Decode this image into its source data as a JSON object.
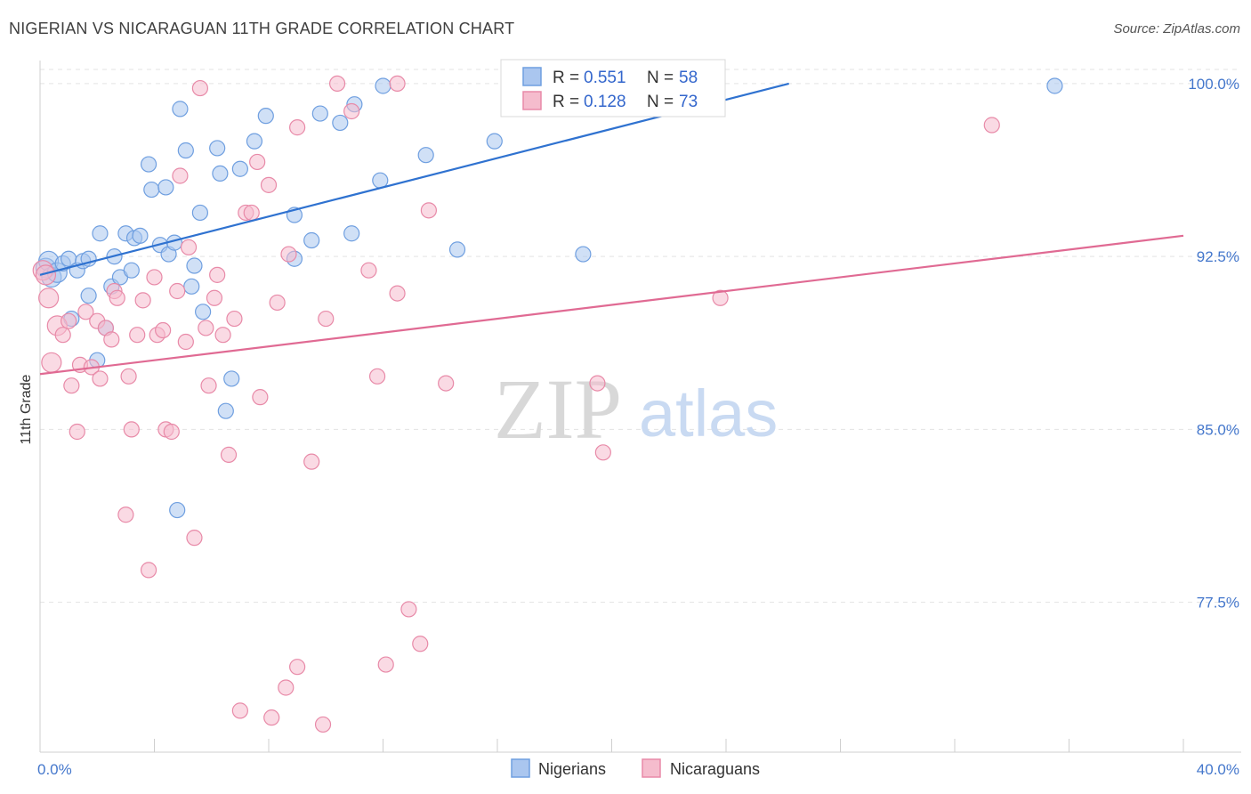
{
  "title": "NIGERIAN VS NICARAGUAN 11TH GRADE CORRELATION CHART",
  "source": "Source: ZipAtlas.com",
  "watermark": {
    "zip": "ZIP",
    "atlas": "atlas"
  },
  "chart_data": {
    "type": "scatter",
    "title": "NIGERIAN VS NICARAGUAN 11TH GRADE CORRELATION CHART",
    "xlabel": "",
    "ylabel": "11th Grade",
    "xlim": [
      0,
      40
    ],
    "ylim": [
      71,
      101
    ],
    "x_tick_labels": [
      {
        "value": 0,
        "label": "0.0%"
      },
      {
        "value": 40,
        "label": "40.0%"
      }
    ],
    "y_tick_labels": [
      {
        "value": 100,
        "label": "100.0%"
      },
      {
        "value": 92.5,
        "label": "92.5%"
      },
      {
        "value": 85,
        "label": "85.0%"
      },
      {
        "value": 77.5,
        "label": "77.5%"
      }
    ],
    "series": [
      {
        "name": "Nigerians",
        "color": "#6f9fe0",
        "fill": "#aac6ef",
        "line_color": "#2f72d0",
        "R": "0.551",
        "N": "58",
        "trend": {
          "x": [
            0,
            26.2
          ],
          "y": [
            91.7,
            100.0
          ]
        },
        "points": [
          [
            0.2,
            92.0
          ],
          [
            0.3,
            92.3
          ],
          [
            0.4,
            91.6
          ],
          [
            0.6,
            91.8
          ],
          [
            0.8,
            92.2
          ],
          [
            1.0,
            92.4
          ],
          [
            1.3,
            91.9
          ],
          [
            1.5,
            92.3
          ],
          [
            1.7,
            92.4
          ],
          [
            1.1,
            89.8
          ],
          [
            1.7,
            90.8
          ],
          [
            2.0,
            88.0
          ],
          [
            2.1,
            93.5
          ],
          [
            2.3,
            89.4
          ],
          [
            2.5,
            91.2
          ],
          [
            2.6,
            92.5
          ],
          [
            2.8,
            91.6
          ],
          [
            3.0,
            93.5
          ],
          [
            3.2,
            91.9
          ],
          [
            3.3,
            93.3
          ],
          [
            3.5,
            93.4
          ],
          [
            3.8,
            96.5
          ],
          [
            3.9,
            95.4
          ],
          [
            4.2,
            93.0
          ],
          [
            4.4,
            95.5
          ],
          [
            4.5,
            92.6
          ],
          [
            4.7,
            93.1
          ],
          [
            4.9,
            98.9
          ],
          [
            5.1,
            97.1
          ],
          [
            5.3,
            91.2
          ],
          [
            5.4,
            92.1
          ],
          [
            5.6,
            94.4
          ],
          [
            5.7,
            90.1
          ],
          [
            6.2,
            97.2
          ],
          [
            6.3,
            96.1
          ],
          [
            6.7,
            87.2
          ],
          [
            6.5,
            85.8
          ],
          [
            7.0,
            96.3
          ],
          [
            7.5,
            97.5
          ],
          [
            7.9,
            98.6
          ],
          [
            8.9,
            94.3
          ],
          [
            8.9,
            92.4
          ],
          [
            9.5,
            93.2
          ],
          [
            9.8,
            98.7
          ],
          [
            10.5,
            98.3
          ],
          [
            10.9,
            93.5
          ],
          [
            11.0,
            99.1
          ],
          [
            11.9,
            95.8
          ],
          [
            12.0,
            99.9
          ],
          [
            13.5,
            96.9
          ],
          [
            14.6,
            92.8
          ],
          [
            15.9,
            97.5
          ],
          [
            16.9,
            99.9
          ],
          [
            18.7,
            99.9
          ],
          [
            19.0,
            92.6
          ],
          [
            23.2,
            99.9
          ],
          [
            35.5,
            99.9
          ],
          [
            4.8,
            81.5
          ]
        ]
      },
      {
        "name": "Nicaraguans",
        "color": "#e88aa8",
        "fill": "#f5bccd",
        "line_color": "#e06a93",
        "R": "0.128",
        "N": "73",
        "trend": {
          "x": [
            0,
            40
          ],
          "y": [
            87.4,
            93.4
          ]
        },
        "points": [
          [
            0.1,
            91.9
          ],
          [
            0.3,
            90.7
          ],
          [
            0.4,
            87.9
          ],
          [
            0.6,
            89.5
          ],
          [
            0.8,
            89.1
          ],
          [
            1.0,
            89.7
          ],
          [
            1.1,
            86.9
          ],
          [
            1.3,
            84.9
          ],
          [
            1.4,
            87.8
          ],
          [
            1.6,
            90.1
          ],
          [
            1.8,
            87.7
          ],
          [
            2.0,
            89.7
          ],
          [
            2.1,
            87.2
          ],
          [
            2.3,
            89.4
          ],
          [
            2.5,
            88.9
          ],
          [
            2.6,
            91.0
          ],
          [
            2.7,
            90.7
          ],
          [
            3.0,
            81.3
          ],
          [
            3.1,
            87.3
          ],
          [
            3.2,
            85.0
          ],
          [
            3.4,
            89.1
          ],
          [
            3.6,
            90.6
          ],
          [
            3.8,
            78.9
          ],
          [
            4.0,
            91.6
          ],
          [
            4.1,
            89.1
          ],
          [
            4.3,
            89.3
          ],
          [
            4.4,
            85.0
          ],
          [
            4.6,
            84.9
          ],
          [
            4.8,
            91.0
          ],
          [
            4.9,
            96.0
          ],
          [
            5.1,
            88.8
          ],
          [
            5.2,
            92.9
          ],
          [
            5.4,
            80.3
          ],
          [
            5.6,
            99.8
          ],
          [
            5.8,
            89.4
          ],
          [
            5.9,
            86.9
          ],
          [
            6.1,
            90.7
          ],
          [
            6.2,
            91.7
          ],
          [
            6.4,
            89.1
          ],
          [
            6.6,
            83.9
          ],
          [
            6.8,
            89.8
          ],
          [
            7.0,
            72.8
          ],
          [
            7.2,
            94.4
          ],
          [
            7.4,
            94.4
          ],
          [
            7.6,
            96.6
          ],
          [
            7.7,
            86.4
          ],
          [
            8.0,
            95.6
          ],
          [
            8.1,
            72.5
          ],
          [
            8.3,
            90.5
          ],
          [
            8.6,
            73.8
          ],
          [
            8.7,
            92.6
          ],
          [
            9.0,
            98.1
          ],
          [
            9.0,
            74.7
          ],
          [
            9.5,
            83.6
          ],
          [
            9.9,
            72.2
          ],
          [
            10.0,
            89.8
          ],
          [
            10.4,
            100.0
          ],
          [
            10.9,
            98.8
          ],
          [
            11.5,
            91.9
          ],
          [
            11.8,
            87.3
          ],
          [
            12.1,
            74.8
          ],
          [
            12.5,
            90.9
          ],
          [
            12.5,
            100.0
          ],
          [
            12.9,
            77.2
          ],
          [
            13.3,
            75.7
          ],
          [
            13.6,
            94.5
          ],
          [
            14.2,
            87.0
          ],
          [
            19.5,
            87.0
          ],
          [
            19.7,
            84.0
          ],
          [
            20.6,
            100.0
          ],
          [
            23.8,
            90.7
          ],
          [
            33.3,
            98.2
          ],
          [
            0.2,
            91.7
          ]
        ]
      }
    ],
    "legend": {
      "r_label": "R = ",
      "n_label": "N = "
    }
  }
}
